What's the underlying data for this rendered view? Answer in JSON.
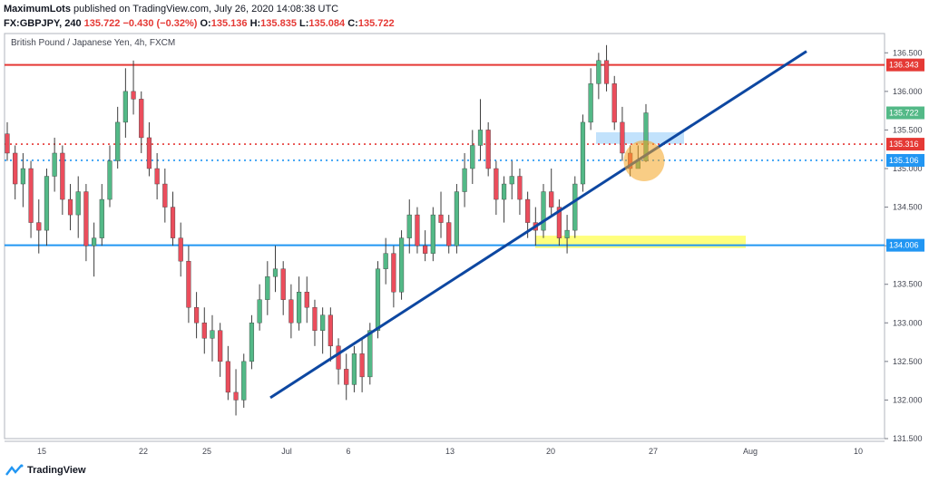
{
  "header": {
    "author": "MaximumLots",
    "published_text": "published on TradingView.com, July 26, 2020 14:08:38 UTC",
    "symbol": "FX:GBPJPY, 240",
    "last": "135.722",
    "change": "−0.430 (−0.32%)",
    "o_label": "O:",
    "o_value": "135.136",
    "h_label": "H:",
    "h_value": "135.835",
    "l_label": "L:",
    "l_value": "135.084",
    "c_label": "C:",
    "c_value": "135.722"
  },
  "footer": {
    "brand": "TradingView"
  },
  "colors": {
    "up": "#53b987",
    "down": "#eb4d5c",
    "resistance": "#e53935",
    "support": "#2196f3",
    "trendline": "#0d47a1",
    "highlight_yellow": "#ffff66",
    "zone_blue": "#90caf9",
    "circle": "#f5a623"
  },
  "chart_data": {
    "type": "candlestick",
    "title": "British Pound / Japanese Yen, 4h, FXCM",
    "x_tick_labels": [
      "15",
      "22",
      "25",
      "Jul",
      "6",
      "13",
      "20",
      "27",
      "Aug",
      "10"
    ],
    "y_tick_labels": [
      "131.500",
      "132.000",
      "132.500",
      "133.000",
      "133.500",
      "134.000",
      "134.500",
      "135.000",
      "135.500",
      "136.000",
      "136.500"
    ],
    "ylim": [
      131.5,
      136.75
    ],
    "horizontal_levels": [
      {
        "value": 136.343,
        "label": "136.343",
        "style": "solid",
        "color": "#e53935"
      },
      {
        "value": 135.316,
        "label": "135.316",
        "style": "dotted",
        "color": "#e53935"
      },
      {
        "value": 135.106,
        "label": "135.106",
        "style": "dotted",
        "color": "#2196f3"
      },
      {
        "value": 134.006,
        "label": "134.006",
        "style": "solid",
        "color": "#2196f3"
      }
    ],
    "last_price": {
      "value": 135.722,
      "label": "135.722"
    },
    "trendline": [
      {
        "date": "Jun 30",
        "price": 132.03
      },
      {
        "date": "Aug 6",
        "price": 136.52
      }
    ],
    "candles": [
      {
        "o": 135.45,
        "h": 135.6,
        "l": 135.1,
        "c": 135.2
      },
      {
        "o": 135.2,
        "h": 135.3,
        "l": 134.6,
        "c": 134.8
      },
      {
        "o": 134.8,
        "h": 135.2,
        "l": 134.5,
        "c": 135.0
      },
      {
        "o": 135.0,
        "h": 135.1,
        "l": 134.1,
        "c": 134.3
      },
      {
        "o": 134.3,
        "h": 134.6,
        "l": 133.9,
        "c": 134.2
      },
      {
        "o": 134.2,
        "h": 135.0,
        "l": 134.0,
        "c": 134.9
      },
      {
        "o": 134.9,
        "h": 135.4,
        "l": 134.7,
        "c": 135.2
      },
      {
        "o": 135.2,
        "h": 135.3,
        "l": 134.4,
        "c": 134.6
      },
      {
        "o": 134.6,
        "h": 134.8,
        "l": 134.2,
        "c": 134.4
      },
      {
        "o": 134.4,
        "h": 134.9,
        "l": 134.1,
        "c": 134.7
      },
      {
        "o": 134.7,
        "h": 134.8,
        "l": 133.8,
        "c": 134.0
      },
      {
        "o": 134.0,
        "h": 134.3,
        "l": 133.6,
        "c": 134.1
      },
      {
        "o": 134.1,
        "h": 134.8,
        "l": 134.0,
        "c": 134.6
      },
      {
        "o": 134.6,
        "h": 135.3,
        "l": 134.5,
        "c": 135.1
      },
      {
        "o": 135.1,
        "h": 135.8,
        "l": 135.0,
        "c": 135.6
      },
      {
        "o": 135.6,
        "h": 136.3,
        "l": 135.4,
        "c": 136.0
      },
      {
        "o": 136.0,
        "h": 136.4,
        "l": 135.7,
        "c": 135.9
      },
      {
        "o": 135.9,
        "h": 136.0,
        "l": 135.2,
        "c": 135.4
      },
      {
        "o": 135.4,
        "h": 135.6,
        "l": 134.9,
        "c": 135.0
      },
      {
        "o": 135.0,
        "h": 135.2,
        "l": 134.6,
        "c": 134.8
      },
      {
        "o": 134.8,
        "h": 135.0,
        "l": 134.3,
        "c": 134.5
      },
      {
        "o": 134.5,
        "h": 134.7,
        "l": 134.0,
        "c": 134.1
      },
      {
        "o": 134.1,
        "h": 134.3,
        "l": 133.6,
        "c": 133.8
      },
      {
        "o": 133.8,
        "h": 134.0,
        "l": 133.0,
        "c": 133.2
      },
      {
        "o": 133.2,
        "h": 133.4,
        "l": 132.8,
        "c": 133.0
      },
      {
        "o": 133.0,
        "h": 133.2,
        "l": 132.6,
        "c": 132.8
      },
      {
        "o": 132.8,
        "h": 133.1,
        "l": 132.5,
        "c": 132.9
      },
      {
        "o": 132.9,
        "h": 133.0,
        "l": 132.3,
        "c": 132.5
      },
      {
        "o": 132.5,
        "h": 132.7,
        "l": 132.0,
        "c": 132.1
      },
      {
        "o": 132.1,
        "h": 132.4,
        "l": 131.8,
        "c": 132.0
      },
      {
        "o": 132.0,
        "h": 132.6,
        "l": 131.9,
        "c": 132.5
      },
      {
        "o": 132.5,
        "h": 133.1,
        "l": 132.4,
        "c": 133.0
      },
      {
        "o": 133.0,
        "h": 133.5,
        "l": 132.9,
        "c": 133.3
      },
      {
        "o": 133.3,
        "h": 133.8,
        "l": 133.1,
        "c": 133.6
      },
      {
        "o": 133.6,
        "h": 134.0,
        "l": 133.4,
        "c": 133.7
      },
      {
        "o": 133.7,
        "h": 133.8,
        "l": 133.1,
        "c": 133.3
      },
      {
        "o": 133.3,
        "h": 133.5,
        "l": 132.8,
        "c": 133.0
      },
      {
        "o": 133.0,
        "h": 133.6,
        "l": 132.9,
        "c": 133.4
      },
      {
        "o": 133.4,
        "h": 133.6,
        "l": 133.0,
        "c": 133.2
      },
      {
        "o": 133.2,
        "h": 133.3,
        "l": 132.7,
        "c": 132.9
      },
      {
        "o": 132.9,
        "h": 133.2,
        "l": 132.6,
        "c": 133.1
      },
      {
        "o": 133.1,
        "h": 133.2,
        "l": 132.5,
        "c": 132.7
      },
      {
        "o": 132.7,
        "h": 132.8,
        "l": 132.2,
        "c": 132.4
      },
      {
        "o": 132.4,
        "h": 132.6,
        "l": 132.0,
        "c": 132.2
      },
      {
        "o": 132.2,
        "h": 132.7,
        "l": 132.1,
        "c": 132.6
      },
      {
        "o": 132.6,
        "h": 132.8,
        "l": 132.1,
        "c": 132.3
      },
      {
        "o": 132.3,
        "h": 133.0,
        "l": 132.2,
        "c": 132.9
      },
      {
        "o": 132.9,
        "h": 133.8,
        "l": 132.8,
        "c": 133.7
      },
      {
        "o": 133.7,
        "h": 134.1,
        "l": 133.5,
        "c": 133.9
      },
      {
        "o": 133.9,
        "h": 134.0,
        "l": 133.2,
        "c": 133.4
      },
      {
        "o": 133.4,
        "h": 134.2,
        "l": 133.3,
        "c": 134.1
      },
      {
        "o": 134.1,
        "h": 134.6,
        "l": 133.9,
        "c": 134.4
      },
      {
        "o": 134.4,
        "h": 134.5,
        "l": 133.9,
        "c": 134.0
      },
      {
        "o": 134.0,
        "h": 134.2,
        "l": 133.8,
        "c": 133.9
      },
      {
        "o": 133.9,
        "h": 134.5,
        "l": 133.8,
        "c": 134.4
      },
      {
        "o": 134.4,
        "h": 134.7,
        "l": 134.1,
        "c": 134.3
      },
      {
        "o": 134.3,
        "h": 134.4,
        "l": 133.9,
        "c": 134.0
      },
      {
        "o": 134.0,
        "h": 134.8,
        "l": 133.9,
        "c": 134.7
      },
      {
        "o": 134.7,
        "h": 135.2,
        "l": 134.5,
        "c": 135.0
      },
      {
        "o": 135.0,
        "h": 135.5,
        "l": 134.8,
        "c": 135.3
      },
      {
        "o": 135.3,
        "h": 135.9,
        "l": 135.1,
        "c": 135.5
      },
      {
        "o": 135.5,
        "h": 135.6,
        "l": 134.9,
        "c": 135.0
      },
      {
        "o": 135.0,
        "h": 135.1,
        "l": 134.4,
        "c": 134.6
      },
      {
        "o": 134.6,
        "h": 134.9,
        "l": 134.3,
        "c": 134.8
      },
      {
        "o": 134.8,
        "h": 135.1,
        "l": 134.6,
        "c": 134.9
      },
      {
        "o": 134.9,
        "h": 135.0,
        "l": 134.4,
        "c": 134.6
      },
      {
        "o": 134.6,
        "h": 134.7,
        "l": 134.1,
        "c": 134.3
      },
      {
        "o": 134.3,
        "h": 134.5,
        "l": 134.0,
        "c": 134.2
      },
      {
        "o": 134.2,
        "h": 134.8,
        "l": 134.1,
        "c": 134.7
      },
      {
        "o": 134.7,
        "h": 135.0,
        "l": 134.4,
        "c": 134.5
      },
      {
        "o": 134.5,
        "h": 134.6,
        "l": 134.0,
        "c": 134.1
      },
      {
        "o": 134.1,
        "h": 134.4,
        "l": 133.9,
        "c": 134.2
      },
      {
        "o": 134.2,
        "h": 134.9,
        "l": 134.1,
        "c": 134.8
      },
      {
        "o": 134.8,
        "h": 135.7,
        "l": 134.7,
        "c": 135.6
      },
      {
        "o": 135.6,
        "h": 136.3,
        "l": 135.5,
        "c": 136.1
      },
      {
        "o": 136.1,
        "h": 136.5,
        "l": 135.9,
        "c": 136.4
      },
      {
        "o": 136.4,
        "h": 136.6,
        "l": 136.0,
        "c": 136.1
      },
      {
        "o": 136.1,
        "h": 136.2,
        "l": 135.5,
        "c": 135.6
      },
      {
        "o": 135.6,
        "h": 135.8,
        "l": 135.1,
        "c": 135.2
      },
      {
        "o": 135.2,
        "h": 135.3,
        "l": 134.9,
        "c": 135.0
      },
      {
        "o": 135.0,
        "h": 135.3,
        "l": 135.0,
        "c": 135.1
      },
      {
        "o": 135.1,
        "h": 135.835,
        "l": 135.084,
        "c": 135.722
      }
    ]
  }
}
